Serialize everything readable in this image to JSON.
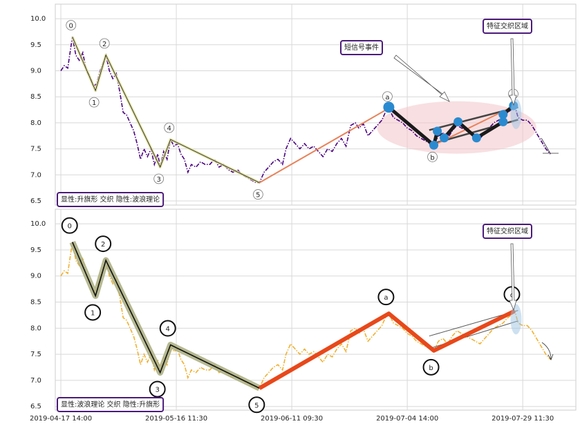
{
  "chart_data": {
    "type": "line",
    "xlim": [
      -4.8,
      446
    ],
    "xticks": [
      {
        "value": 0,
        "label": "2019-04-17 14:00"
      },
      {
        "value": 100,
        "label": "2019-05-16 11:30"
      },
      {
        "value": 200,
        "label": "2019-06-11 09:30"
      },
      {
        "value": 300,
        "label": "2019-07-04 14:00"
      },
      {
        "value": 400,
        "label": "2019-07-29 11:30"
      }
    ],
    "x": [
      0,
      3,
      6,
      10,
      13,
      16,
      19,
      22,
      25,
      28,
      31,
      34,
      39,
      42,
      45,
      48,
      51,
      54,
      57,
      60,
      63,
      66,
      69,
      72,
      75,
      78,
      81,
      84,
      86,
      89,
      92,
      95,
      98,
      101,
      104,
      107,
      110,
      113,
      117,
      121,
      125,
      129,
      133,
      137,
      141,
      145,
      149,
      153,
      157,
      161,
      165,
      169,
      172,
      176,
      180,
      184,
      188,
      192,
      195,
      199,
      203,
      207,
      211,
      215,
      219,
      223,
      227,
      231,
      235,
      239,
      243,
      247,
      251,
      255,
      258,
      262,
      266,
      270,
      274,
      278,
      281,
      284,
      288,
      292,
      296,
      300,
      304,
      308,
      312,
      316,
      320,
      323,
      327,
      331,
      335,
      339,
      343,
      347,
      351,
      355,
      359,
      363,
      367,
      371,
      375,
      379,
      383,
      387,
      390,
      393,
      396,
      400,
      404,
      408,
      412,
      416,
      420,
      424
    ],
    "values": [
      9.0,
      9.1,
      9.05,
      9.65,
      9.3,
      9.2,
      9.35,
      9.0,
      8.9,
      8.7,
      8.75,
      9.0,
      9.3,
      9.0,
      8.85,
      8.95,
      8.6,
      8.2,
      8.15,
      8.0,
      7.85,
      7.6,
      7.3,
      7.5,
      7.35,
      7.5,
      7.2,
      7.4,
      7.15,
      7.45,
      7.3,
      7.68,
      7.55,
      7.6,
      7.4,
      7.3,
      7.05,
      7.2,
      7.15,
      7.25,
      7.2,
      7.2,
      7.3,
      7.15,
      7.2,
      7.1,
      7.05,
      7.1,
      7.0,
      6.95,
      6.9,
      6.85,
      6.85,
      7.05,
      7.15,
      7.25,
      7.3,
      7.2,
      7.5,
      7.7,
      7.6,
      7.5,
      7.6,
      7.5,
      7.55,
      7.45,
      7.35,
      7.5,
      7.45,
      7.6,
      7.7,
      7.55,
      7.95,
      8.0,
      7.9,
      7.98,
      7.75,
      7.85,
      7.95,
      8.05,
      8.2,
      8.28,
      8.1,
      8.05,
      8.0,
      7.9,
      7.85,
      7.75,
      7.7,
      7.65,
      7.6,
      7.57,
      7.75,
      7.8,
      7.7,
      7.85,
      7.95,
      7.9,
      7.85,
      7.8,
      7.75,
      7.7,
      7.8,
      7.9,
      8.0,
      8.05,
      8.1,
      8.2,
      8.25,
      8.33,
      8.1,
      8.05,
      8.05,
      7.95,
      7.8,
      7.65,
      7.5,
      7.4
    ],
    "panels": [
      {
        "ylim": [
          6.42,
          10.28
        ],
        "yticks": [
          {
            "value": 10,
            "label": "10.0"
          },
          9.5,
          {
            "value": 9,
            "label": "9.0"
          },
          8.5,
          {
            "value": 8,
            "label": "8.0"
          },
          7.5,
          {
            "value": 7,
            "label": "7.0"
          },
          6.5
        ],
        "price_color": "#4b0082",
        "price_dash": "6 2 1.5 2",
        "impulse": {
          "labels": [
            "0",
            "1",
            "2",
            "3",
            "4",
            "5"
          ],
          "x": [
            10,
            30,
            39,
            86,
            95,
            172
          ],
          "values": [
            9.65,
            8.62,
            9.3,
            7.15,
            7.68,
            6.85
          ],
          "color": "#1a1a1a",
          "band_color": "#dede9a"
        },
        "correction": {
          "labels": [
            "a",
            "b",
            "c"
          ],
          "x": [
            284,
            323,
            393
          ],
          "values": [
            8.28,
            7.57,
            8.33
          ],
          "color": "#e8825a"
        },
        "flag": {
          "x": [
            284,
            323,
            326,
            332,
            344,
            360,
            383,
            383,
            392
          ],
          "values": [
            8.3,
            7.57,
            7.84,
            7.71,
            8.02,
            7.71,
            8.02,
            8.16,
            8.33
          ],
          "color": "#1a1a1a",
          "point_color": "#2a8ad0"
        },
        "channel": {
          "x": [
            319,
            396
          ],
          "upper": [
            7.86,
            8.3
          ],
          "lower": [
            7.58,
            8.06
          ],
          "color": "#444444"
        },
        "region_color": "#f2c4c8",
        "label_style": "small",
        "annotations": {
          "signal": "短信号事件",
          "region": "特征交织区域",
          "caption": "显性:升旗形 交织 隐性:波浪理论"
        }
      },
      {
        "ylim": [
          6.43,
          10.28
        ],
        "yticks": [
          {
            "value": 10,
            "label": "10.0"
          },
          9.5,
          {
            "value": 9,
            "label": "9.0"
          },
          8.5,
          {
            "value": 8,
            "label": "8.0"
          },
          7.5,
          {
            "value": 7,
            "label": "7.0"
          },
          6.5
        ],
        "price_color": "#f0b030",
        "price_dash": "6 2 1.5 2",
        "impulse": {
          "labels": [
            "0",
            "1",
            "2",
            "3",
            "4",
            "5"
          ],
          "x": [
            10,
            30,
            39,
            86,
            95,
            172
          ],
          "values": [
            9.65,
            8.62,
            9.3,
            7.15,
            7.68,
            6.85
          ],
          "color": "#111111",
          "band_color": "#a9ad7e"
        },
        "correction": {
          "labels": [
            "a",
            "b",
            "c"
          ],
          "x": [
            284,
            323,
            393
          ],
          "values": [
            8.28,
            7.57,
            8.33
          ],
          "color": "#e8481a"
        },
        "channel": {
          "x": [
            319,
            396
          ],
          "upper": [
            7.85,
            8.34
          ],
          "lower": [
            7.61,
            8.14
          ],
          "color": "#555555"
        },
        "label_style": "large",
        "annotations": {
          "region": "特征交织区域",
          "caption": "显性:波浪理论 交织 隐性:升旗形"
        }
      }
    ]
  }
}
